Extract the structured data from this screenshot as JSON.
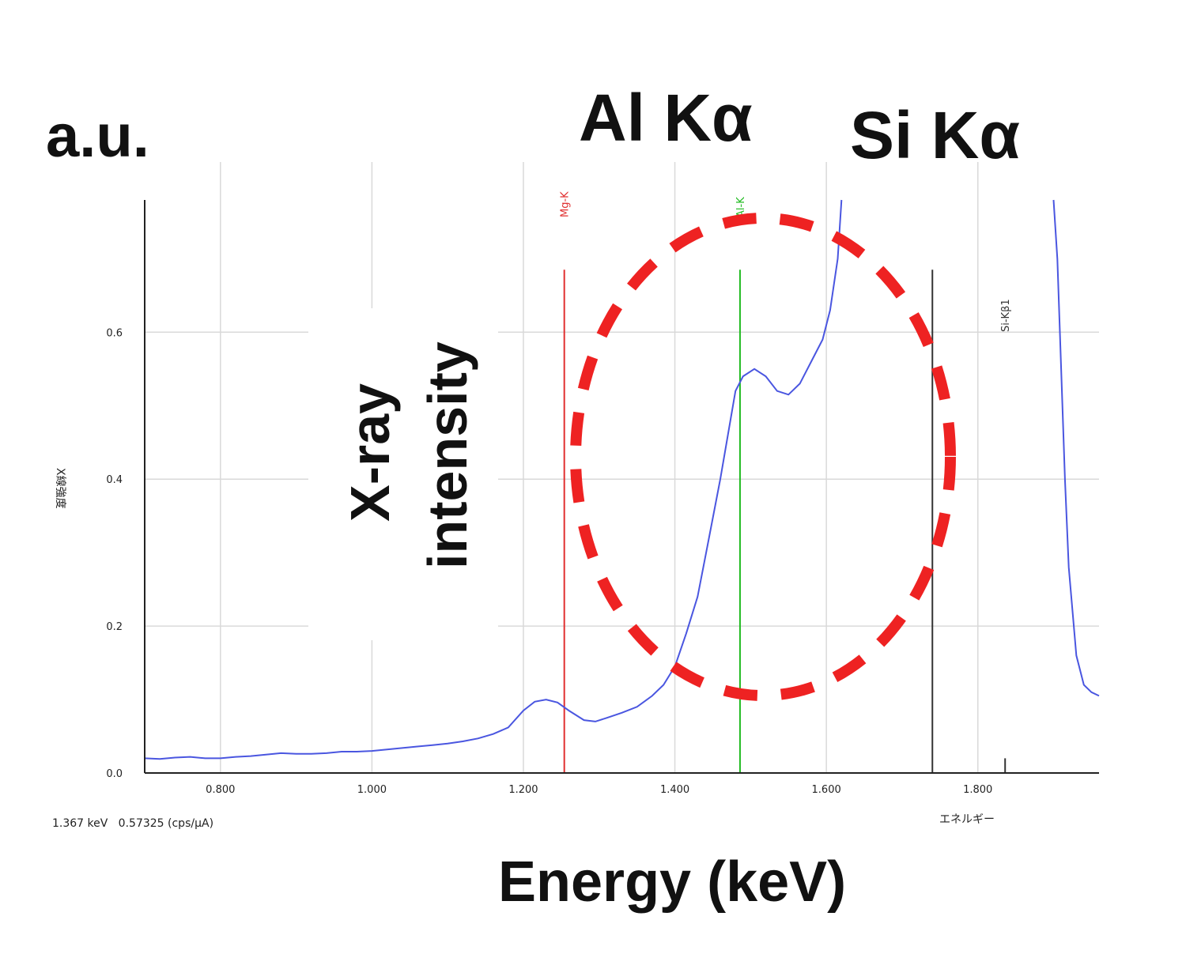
{
  "overlay_labels": {
    "unit": "a.u.",
    "al_peak": "Al Kα",
    "si_peak": "Si Kα",
    "y_axis_overlay_line1": "X-ray",
    "y_axis_overlay_line2": "intensity",
    "x_axis_overlay": "Energy (keV)"
  },
  "readout": "1.367 keV   0.57325 (cps/μA)",
  "x_axis_jp_label": "エネルギー",
  "y_axis_jp_label": "X線強度",
  "colors": {
    "spectrum": "#4a56e0",
    "mg_line": "#e03030",
    "al_line": "#22bb22",
    "si_line": "#333333",
    "highlight_circle": "#ee2222",
    "grid": "#d9d9d9"
  },
  "chart_data": {
    "type": "line",
    "xlabel": "エネルギー",
    "ylabel": "X線強度",
    "xlim": [
      0.7,
      1.96
    ],
    "ylim": [
      0,
      0.78
    ],
    "x_ticks": [
      "0.800",
      "1.000",
      "1.200",
      "1.400",
      "1.600",
      "1.800"
    ],
    "y_ticks": [
      "0.0",
      "0.2",
      "0.4",
      "0.6"
    ],
    "grid": true,
    "series": [
      {
        "x": [
          0.7,
          0.72,
          0.74,
          0.76,
          0.78,
          0.8,
          0.82,
          0.84,
          0.86,
          0.88,
          0.9,
          0.92,
          0.94,
          0.96,
          0.98,
          1.0,
          1.02,
          1.04,
          1.06,
          1.08,
          1.1,
          1.12,
          1.14,
          1.16,
          1.18,
          1.2,
          1.215,
          1.23,
          1.245,
          1.26,
          1.28,
          1.295,
          1.31,
          1.33,
          1.35,
          1.37,
          1.385,
          1.4,
          1.415,
          1.43,
          1.445,
          1.46,
          1.47,
          1.48,
          1.49,
          1.505,
          1.52,
          1.535,
          1.55,
          1.565,
          1.58,
          1.595,
          1.605,
          1.615,
          1.62
        ],
        "y": [
          0.02,
          0.019,
          0.021,
          0.022,
          0.02,
          0.02,
          0.022,
          0.023,
          0.025,
          0.027,
          0.026,
          0.026,
          0.027,
          0.029,
          0.029,
          0.03,
          0.032,
          0.034,
          0.036,
          0.038,
          0.04,
          0.043,
          0.047,
          0.053,
          0.062,
          0.085,
          0.097,
          0.1,
          0.096,
          0.085,
          0.072,
          0.07,
          0.075,
          0.082,
          0.09,
          0.105,
          0.12,
          0.145,
          0.19,
          0.24,
          0.32,
          0.4,
          0.46,
          0.52,
          0.54,
          0.55,
          0.54,
          0.52,
          0.515,
          0.53,
          0.56,
          0.59,
          0.63,
          0.7,
          0.78
        ]
      },
      {
        "x": [
          1.9,
          1.905,
          1.91,
          1.915,
          1.92,
          1.93,
          1.94,
          1.95,
          1.96
        ],
        "y": [
          0.78,
          0.7,
          0.55,
          0.4,
          0.28,
          0.16,
          0.12,
          0.11,
          0.105
        ]
      }
    ],
    "annotations": [
      {
        "label": "Mg-K",
        "x": 1.254,
        "color": "#e03030",
        "y_top": 0.685
      },
      {
        "label": "Al-K",
        "x": 1.486,
        "color": "#22bb22",
        "y_top": 0.685
      },
      {
        "label": "",
        "x": 1.74,
        "color": "#333333",
        "y_top": 0.685
      },
      {
        "label": "Si-Kβ1",
        "x": 1.836,
        "color": "#333333",
        "y_top": 0.02
      }
    ]
  }
}
